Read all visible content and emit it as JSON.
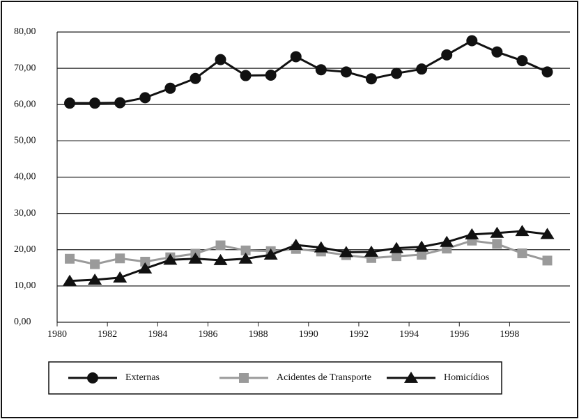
{
  "chart_data": {
    "type": "line",
    "x": [
      1980.5,
      1981.5,
      1982.5,
      1983.5,
      1984.5,
      1985.5,
      1986.5,
      1987.5,
      1988.5,
      1989.5,
      1990.5,
      1991.5,
      1992.5,
      1993.5,
      1994.5,
      1995.5,
      1996.5,
      1997.5,
      1998.5,
      1999.5
    ],
    "series": [
      {
        "name": "Externas",
        "color": "#111111",
        "marker": "circle",
        "values": [
          60.4,
          60.4,
          60.5,
          61.9,
          64.5,
          67.2,
          72.4,
          68,
          68.1,
          73.2,
          69.6,
          69,
          67.1,
          68.6,
          69.8,
          73.7,
          77.6,
          74.5,
          72.1,
          69
        ]
      },
      {
        "name": "Acidentes de Transporte",
        "color": "#9a9a9a",
        "marker": "square",
        "values": [
          17.5,
          16,
          17.6,
          16.7,
          17.9,
          18.9,
          21.2,
          19.8,
          19.6,
          20.2,
          19.5,
          18.5,
          17.7,
          18.2,
          18.6,
          20.3,
          22.5,
          21.6,
          19,
          17
        ]
      },
      {
        "name": "Homicídios",
        "color": "#111111",
        "marker": "triangle",
        "values": [
          11.4,
          11.7,
          12.3,
          14.8,
          17.2,
          17.5,
          17.1,
          17.5,
          18.6,
          21.3,
          20.6,
          19.3,
          19.4,
          20.4,
          20.8,
          22.1,
          24.2,
          24.6,
          25.1,
          24.3
        ]
      }
    ],
    "xlim": [
      1980,
      2000.4
    ],
    "xticks": [
      1980,
      1982,
      1984,
      1986,
      1988,
      1990,
      1992,
      1994,
      1996,
      1998
    ],
    "ylim": [
      0,
      80
    ],
    "yticks": [
      {
        "value": 0,
        "label": "0,00"
      },
      {
        "value": 10,
        "label": "10,00"
      },
      {
        "value": 20,
        "label": "20,00"
      },
      {
        "value": 30,
        "label": "30,00"
      },
      {
        "value": 40,
        "label": "40,00"
      },
      {
        "value": 50,
        "label": "50,00"
      },
      {
        "value": 60,
        "label": "60,00"
      },
      {
        "value": 70,
        "label": "70,00"
      },
      {
        "value": 80,
        "label": "80,00"
      }
    ],
    "grid": true,
    "legend": "bottom"
  }
}
